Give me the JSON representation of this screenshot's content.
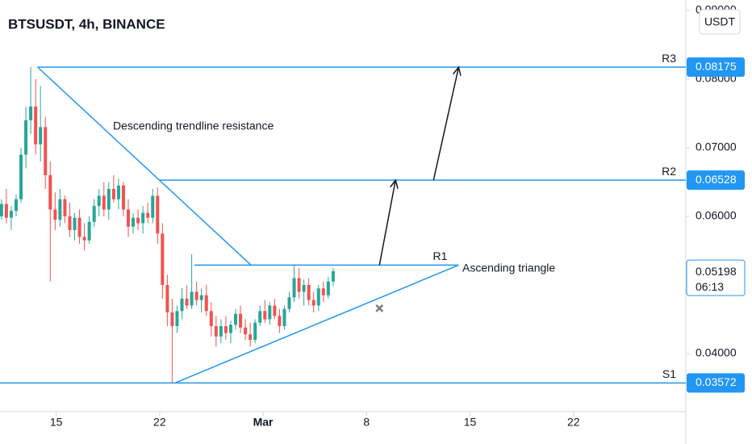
{
  "chart_data": {
    "type": "candlestick",
    "title": "BTSUSDT, 4h, BINANCE",
    "currency_button": "USDT",
    "colors": {
      "up": "#26a69a",
      "down": "#ef5350",
      "drawing": "#2196f3"
    },
    "xlim": [
      11.2,
      57.6
    ],
    "xticks": [
      15,
      22,
      {
        "value": 29,
        "label": "Mar"
      },
      {
        "value": 36,
        "label": "8"
      },
      {
        "value": 43,
        "label": "15"
      },
      {
        "value": 50,
        "label": "22"
      }
    ],
    "ylim": [
      0.03153,
      0.09153
    ],
    "yticks": [
      {
        "value": 0.09,
        "label": "0.09000"
      },
      {
        "value": 0.08,
        "label": "0.08000"
      },
      {
        "value": 0.07,
        "label": "0.07000"
      },
      {
        "value": 0.06,
        "label": "0.06000"
      },
      {
        "value": 0.04,
        "label": "0.04000"
      }
    ],
    "candles": [
      [
        11.3,
        0.06,
        0.0625,
        0.0595,
        0.0618
      ],
      [
        11.63,
        0.0618,
        0.064,
        0.059,
        0.0598
      ],
      [
        11.96,
        0.0598,
        0.0615,
        0.058,
        0.0608
      ],
      [
        12.29,
        0.0608,
        0.0632,
        0.06,
        0.0625
      ],
      [
        12.62,
        0.0625,
        0.07,
        0.062,
        0.069
      ],
      [
        12.95,
        0.069,
        0.076,
        0.067,
        0.074
      ],
      [
        13.28,
        0.074,
        0.0818,
        0.072,
        0.076
      ],
      [
        13.61,
        0.076,
        0.08,
        0.069,
        0.0705
      ],
      [
        13.94,
        0.0705,
        0.079,
        0.068,
        0.073
      ],
      [
        14.27,
        0.073,
        0.0745,
        0.064,
        0.066
      ],
      [
        14.6,
        0.066,
        0.068,
        0.0505,
        0.061
      ],
      [
        14.93,
        0.061,
        0.0635,
        0.058,
        0.0595
      ],
      [
        15.26,
        0.0595,
        0.064,
        0.0585,
        0.0625
      ],
      [
        15.59,
        0.0625,
        0.063,
        0.059,
        0.06
      ],
      [
        15.92,
        0.06,
        0.062,
        0.057,
        0.058
      ],
      [
        16.25,
        0.058,
        0.0605,
        0.0565,
        0.0598
      ],
      [
        16.58,
        0.0598,
        0.061,
        0.056,
        0.057
      ],
      [
        16.91,
        0.057,
        0.059,
        0.055,
        0.0565
      ],
      [
        17.24,
        0.0565,
        0.06,
        0.056,
        0.0592
      ],
      [
        17.57,
        0.0592,
        0.0625,
        0.0585,
        0.0615
      ],
      [
        17.9,
        0.0615,
        0.064,
        0.06,
        0.063
      ],
      [
        18.23,
        0.063,
        0.065,
        0.06,
        0.061
      ],
      [
        18.56,
        0.061,
        0.065,
        0.0595,
        0.064
      ],
      [
        18.89,
        0.064,
        0.066,
        0.062,
        0.0625
      ],
      [
        19.22,
        0.0625,
        0.0655,
        0.061,
        0.0645
      ],
      [
        19.55,
        0.0645,
        0.065,
        0.06,
        0.061
      ],
      [
        19.88,
        0.061,
        0.0625,
        0.057,
        0.0585
      ],
      [
        20.21,
        0.0585,
        0.0605,
        0.0575,
        0.0598
      ],
      [
        20.54,
        0.0598,
        0.061,
        0.058,
        0.059
      ],
      [
        20.87,
        0.059,
        0.0615,
        0.0575,
        0.0605
      ],
      [
        21.2,
        0.0605,
        0.062,
        0.059,
        0.0598
      ],
      [
        21.53,
        0.0598,
        0.064,
        0.059,
        0.063
      ],
      [
        21.86,
        0.063,
        0.0642,
        0.056,
        0.0575
      ],
      [
        22.19,
        0.0575,
        0.059,
        0.048,
        0.05
      ],
      [
        22.52,
        0.05,
        0.0515,
        0.044,
        0.046
      ],
      [
        22.85,
        0.046,
        0.048,
        0.0357,
        0.044
      ],
      [
        23.18,
        0.044,
        0.047,
        0.043,
        0.0462
      ],
      [
        23.51,
        0.0462,
        0.0495,
        0.045,
        0.048
      ],
      [
        23.84,
        0.048,
        0.05,
        0.0465,
        0.047
      ],
      [
        24.17,
        0.047,
        0.0545,
        0.0465,
        0.049
      ],
      [
        24.5,
        0.049,
        0.0505,
        0.047,
        0.0478
      ],
      [
        24.83,
        0.0478,
        0.0495,
        0.046,
        0.0485
      ],
      [
        25.16,
        0.0485,
        0.05,
        0.0455,
        0.0462
      ],
      [
        25.49,
        0.0462,
        0.0475,
        0.0425,
        0.044
      ],
      [
        25.82,
        0.044,
        0.0455,
        0.041,
        0.0425
      ],
      [
        26.15,
        0.0425,
        0.045,
        0.0415,
        0.044
      ],
      [
        26.48,
        0.044,
        0.0455,
        0.042,
        0.043
      ],
      [
        26.81,
        0.043,
        0.0448,
        0.0415,
        0.0442
      ],
      [
        27.14,
        0.0442,
        0.0465,
        0.0435,
        0.0458
      ],
      [
        27.47,
        0.0458,
        0.047,
        0.043,
        0.0438
      ],
      [
        27.8,
        0.0438,
        0.045,
        0.042,
        0.0428
      ],
      [
        28.13,
        0.0428,
        0.0445,
        0.041,
        0.042
      ],
      [
        28.46,
        0.042,
        0.045,
        0.0415,
        0.0445
      ],
      [
        28.79,
        0.0445,
        0.047,
        0.044,
        0.0462
      ],
      [
        29.12,
        0.0462,
        0.0478,
        0.0445,
        0.045
      ],
      [
        29.45,
        0.045,
        0.0475,
        0.0442,
        0.047
      ],
      [
        29.78,
        0.047,
        0.048,
        0.045,
        0.0455
      ],
      [
        30.11,
        0.0455,
        0.0465,
        0.043,
        0.044
      ],
      [
        30.44,
        0.044,
        0.047,
        0.0435,
        0.0465
      ],
      [
        30.77,
        0.0465,
        0.049,
        0.046,
        0.0482
      ],
      [
        31.1,
        0.0482,
        0.053,
        0.0475,
        0.051
      ],
      [
        31.43,
        0.051,
        0.0525,
        0.048,
        0.049
      ],
      [
        31.76,
        0.049,
        0.0508,
        0.047,
        0.05
      ],
      [
        32.09,
        0.05,
        0.051,
        0.047,
        0.0478
      ],
      [
        32.42,
        0.0478,
        0.049,
        0.046,
        0.047
      ],
      [
        32.75,
        0.047,
        0.05,
        0.0462,
        0.0495
      ],
      [
        33.08,
        0.0495,
        0.0505,
        0.0475,
        0.0485
      ],
      [
        33.41,
        0.0485,
        0.0512,
        0.048,
        0.0505
      ],
      [
        33.74,
        0.0505,
        0.0525,
        0.0498,
        0.052
      ]
    ],
    "levels": [
      {
        "name": "R3",
        "value": 0.08175,
        "from": 13.74
      },
      {
        "name": "R2",
        "value": 0.06528,
        "from": 22.0
      },
      {
        "name": "R1",
        "value": 0.0529,
        "from": 24.35,
        "to": 42.23
      },
      {
        "name": "S1",
        "value": 0.03572,
        "from": 11.2
      }
    ],
    "current_price": {
      "value": 0.05198,
      "countdown": "06:13"
    },
    "trendlines": [
      {
        "from": [
          13.74,
          0.08175
        ],
        "to": [
          28.18,
          0.0529
        ]
      },
      {
        "from": [
          23.04,
          0.03572
        ],
        "to": [
          42.23,
          0.0529
        ]
      }
    ],
    "arrows": [
      {
        "from": [
          36.87,
          0.0529
        ],
        "to": [
          37.96,
          0.06528
        ]
      },
      {
        "from": [
          40.53,
          0.06528
        ],
        "to": [
          42.23,
          0.08175
        ]
      }
    ],
    "cancel_marker": [
      36.87,
      0.0466
    ],
    "annotations": [
      "Descending trendline resistance",
      "Ascending triangle"
    ]
  }
}
